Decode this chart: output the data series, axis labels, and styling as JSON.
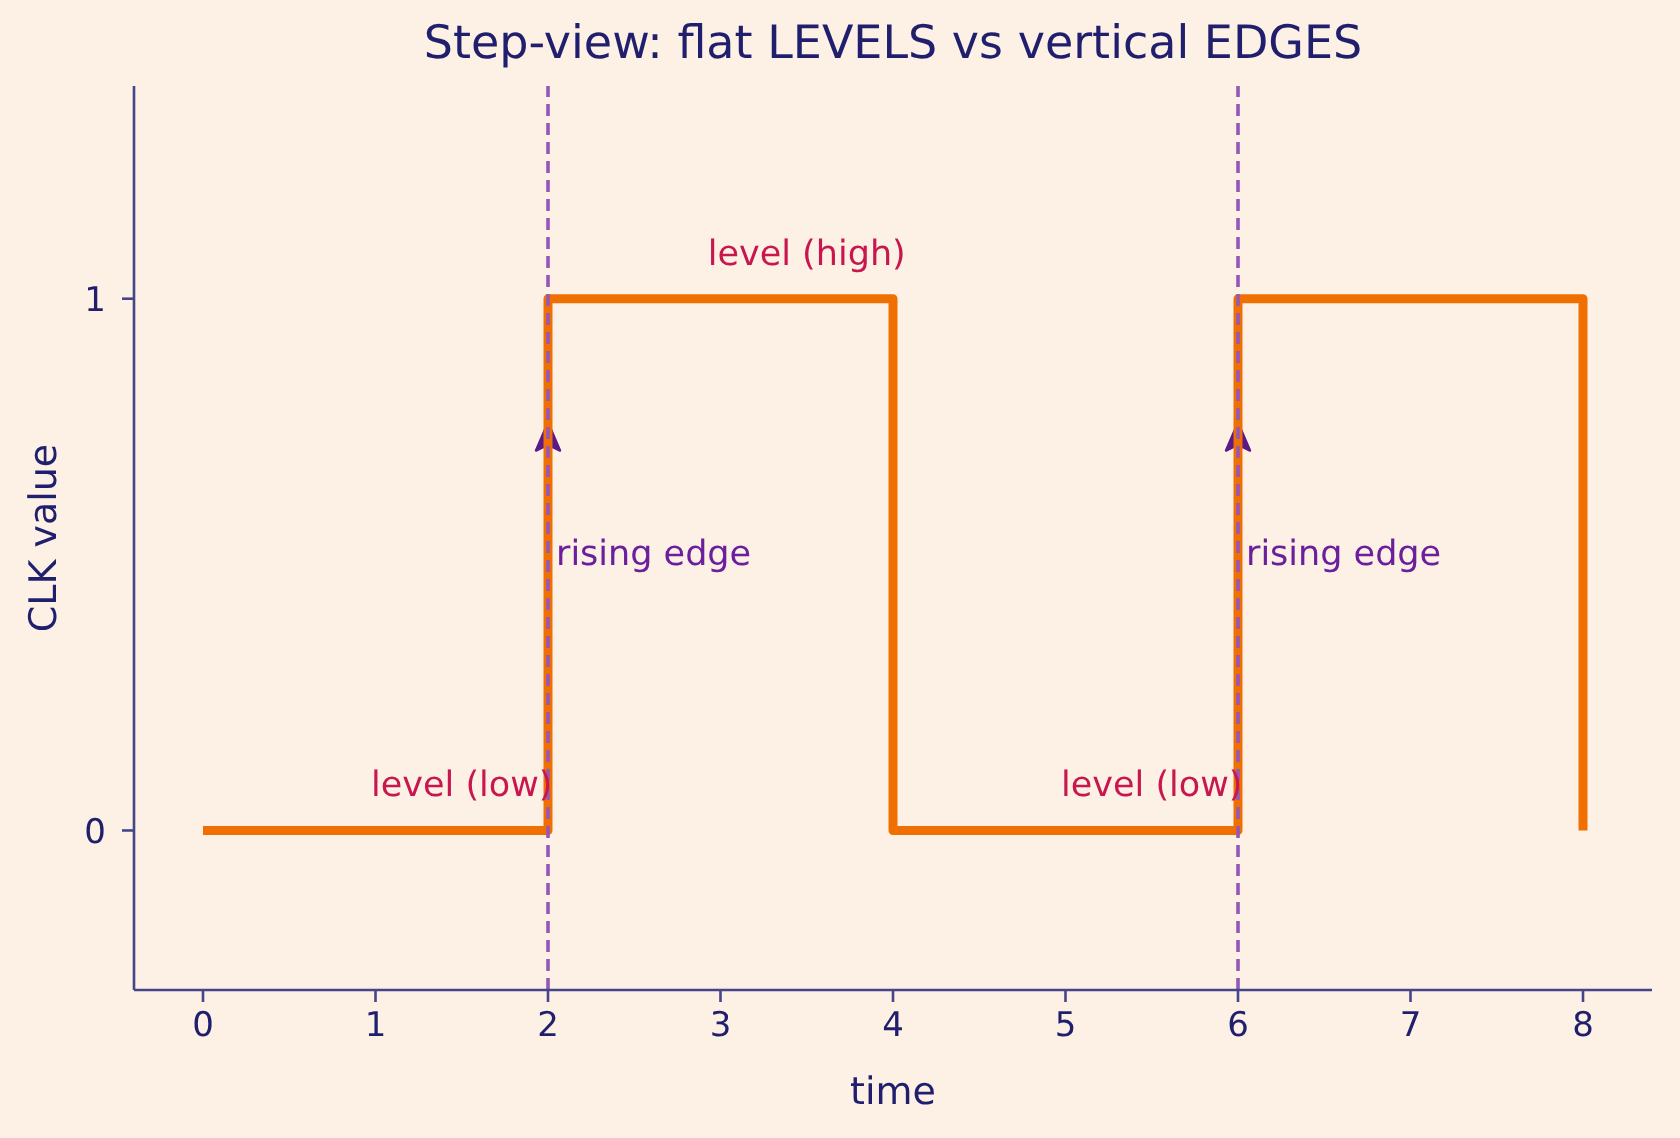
{
  "chart_data": {
    "type": "step",
    "title": "Step-view: flat LEVELS vs vertical EDGES",
    "xlabel": "time",
    "ylabel": "CLK value",
    "x": [
      0,
      2,
      4,
      6,
      8
    ],
    "values": [
      0,
      1,
      0,
      1,
      0
    ],
    "color": "#ef7000",
    "xlim": [
      -0.4,
      8.4
    ],
    "ylim": [
      -0.3,
      1.4
    ],
    "xticks": [
      0,
      1,
      2,
      3,
      4,
      5,
      6,
      7,
      8
    ],
    "yticks": [
      0,
      1
    ],
    "ref_lines": [
      {
        "axis": "x",
        "value": 2,
        "color": "#9457b8",
        "line_style": "dashed"
      },
      {
        "axis": "x",
        "value": 6,
        "color": "#9457b8",
        "line_style": "dashed"
      }
    ],
    "annotations": [
      {
        "text": "level (low)",
        "x": 1.5,
        "y": 0
      },
      {
        "text": "rising edge",
        "x": 2,
        "y": 0.5
      },
      {
        "text": "level (high)",
        "x": 3.5,
        "y": 1
      },
      {
        "text": "level (low)",
        "x": 5.5,
        "y": 0
      },
      {
        "text": "rising edge",
        "x": 6,
        "y": 0.5
      }
    ]
  }
}
